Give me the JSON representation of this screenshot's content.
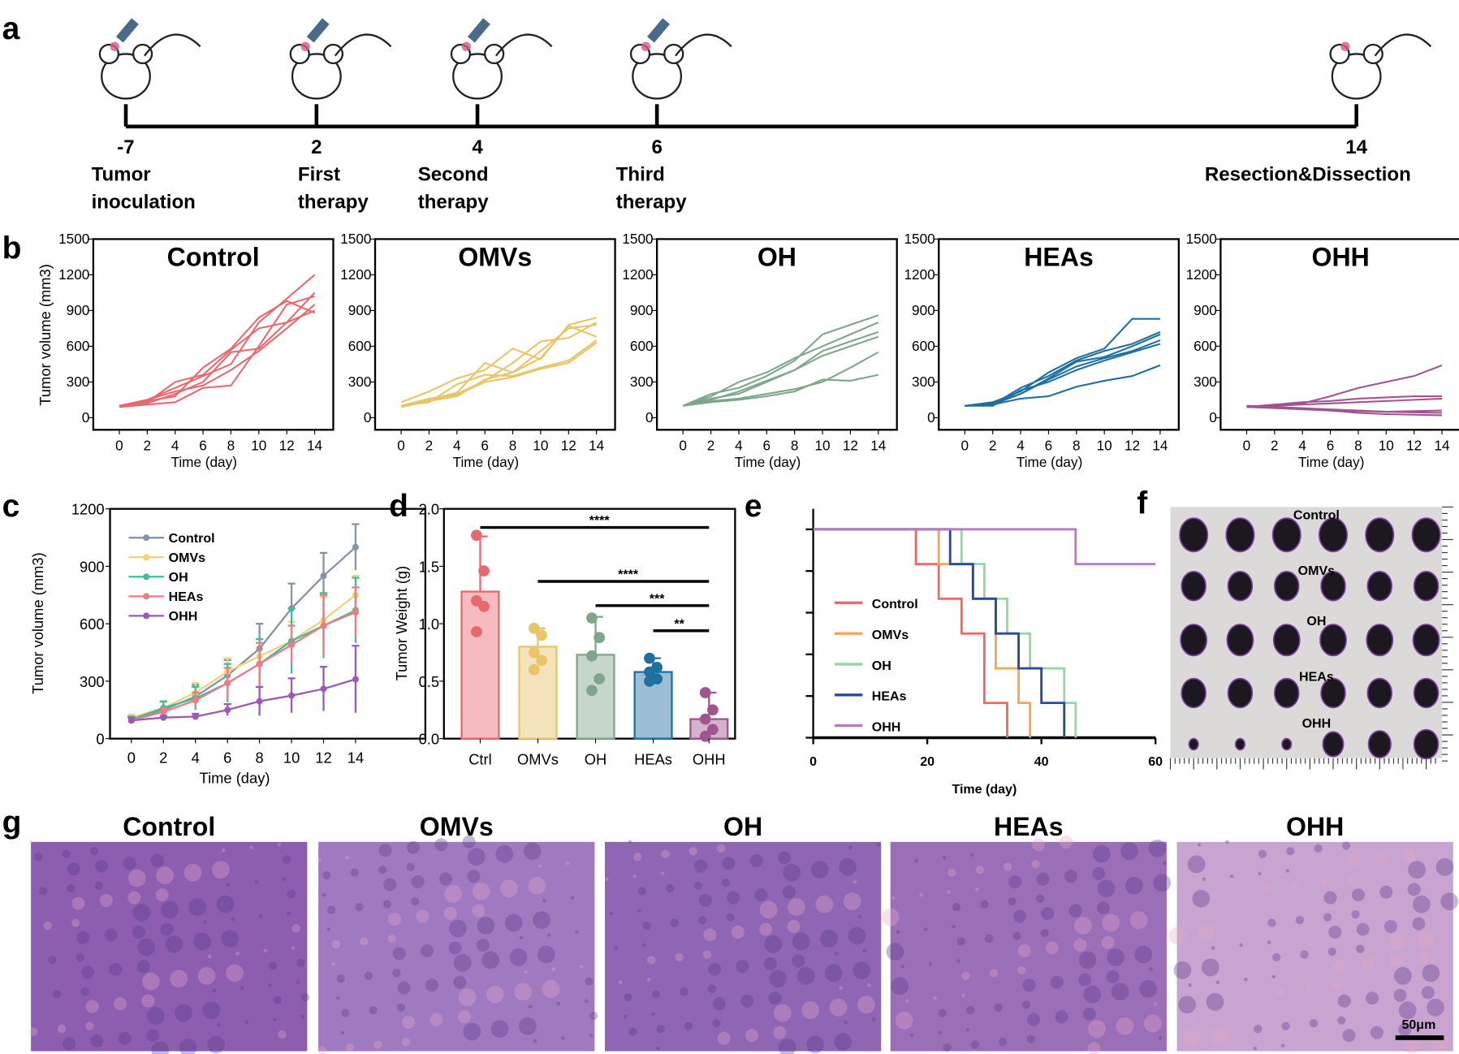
{
  "panels": {
    "a": "a",
    "b": "b",
    "c": "c",
    "d": "d",
    "e": "e",
    "f": "f",
    "g": "g"
  },
  "timeline": [
    {
      "day": "-7",
      "label1": "Tumor",
      "label2": "inoculation"
    },
    {
      "day": "2",
      "label1": "First",
      "label2": "therapy"
    },
    {
      "day": "4",
      "label1": "Second",
      "label2": "therapy"
    },
    {
      "day": "6",
      "label1": "Third",
      "label2": "therapy"
    },
    {
      "day": "14",
      "label1": "Resection&Dissection",
      "label2": ""
    }
  ],
  "colors": {
    "Control": "#e8686f",
    "OMVs": "#e9c468",
    "OH": "#7fa68a",
    "HEAs": "#1f6fa0",
    "OHH": "#a0558f",
    "c_Control": "#8294a6",
    "c_OMVs": "#eed37a",
    "c_OH": "#3bbf9c",
    "c_HEAs": "#ef7b85",
    "c_OHH": "#9a5ab8",
    "e_Control": "#ee6a6a",
    "e_OMVs": "#f2a65a",
    "e_OH": "#98d6a4",
    "e_HEAs": "#2c4a9a",
    "e_OHH": "#b47cc8"
  },
  "chart_data": [
    {
      "type": "line",
      "panel": "b",
      "ylabel": "Tumor volume (mm3)",
      "xlabel": "Time (day)",
      "x": [
        0,
        2,
        4,
        6,
        8,
        10,
        12,
        14
      ],
      "xticks": [
        "0",
        "2",
        "4",
        "6",
        "8",
        "10",
        "12",
        "14"
      ],
      "yticks": [
        "0",
        "300",
        "600",
        "900",
        "1200",
        "1500"
      ],
      "ylim": [
        0,
        1500
      ],
      "groups": [
        {
          "title": "Control",
          "lines": [
            [
              100,
              150,
              250,
              350,
              450,
              800,
              1000,
              1200
            ],
            [
              100,
              120,
              200,
              300,
              550,
              580,
              800,
              1050
            ],
            [
              90,
              110,
              130,
              250,
              270,
              600,
              950,
              1020
            ],
            [
              100,
              150,
              220,
              270,
              400,
              560,
              750,
              950
            ],
            [
              100,
              130,
              300,
              360,
              570,
              750,
              800,
              900
            ],
            [
              95,
              140,
              180,
              420,
              580,
              840,
              980,
              880
            ]
          ]
        },
        {
          "title": "OMVs",
          "lines": [
            [
              130,
              220,
              330,
              400,
              580,
              490,
              780,
              840
            ],
            [
              100,
              160,
              200,
              310,
              460,
              640,
              670,
              800
            ],
            [
              90,
              140,
              180,
              320,
              380,
              560,
              750,
              780
            ],
            [
              100,
              150,
              210,
              460,
              380,
              500,
              770,
              680
            ],
            [
              100,
              130,
              280,
              360,
              350,
              420,
              480,
              650
            ],
            [
              90,
              140,
              190,
              300,
              340,
              410,
              460,
              630
            ]
          ]
        },
        {
          "title": "OH",
          "lines": [
            [
              100,
              200,
              250,
              350,
              480,
              700,
              780,
              860
            ],
            [
              100,
              180,
              300,
              380,
              500,
              600,
              700,
              800
            ],
            [
              100,
              150,
              220,
              310,
              400,
              560,
              640,
              720
            ],
            [
              100,
              160,
              200,
              300,
              400,
              520,
              600,
              680
            ],
            [
              100,
              140,
              160,
              200,
              240,
              300,
              420,
              550
            ],
            [
              100,
              130,
              150,
              180,
              220,
              320,
              310,
              360
            ]
          ]
        },
        {
          "title": "HEAs",
          "lines": [
            [
              100,
              130,
              220,
              380,
              500,
              580,
              830,
              830
            ],
            [
              100,
              110,
              250,
              350,
              480,
              560,
              620,
              720
            ],
            [
              100,
              110,
              200,
              330,
              470,
              510,
              600,
              700
            ],
            [
              100,
              120,
              200,
              320,
              430,
              500,
              560,
              650
            ],
            [
              100,
              100,
              230,
              300,
              400,
              480,
              550,
              620
            ],
            [
              100,
              110,
              160,
              180,
              260,
              310,
              350,
              440
            ]
          ]
        },
        {
          "title": "OHH",
          "lines": [
            [
              90,
              110,
              120,
              180,
              250,
              300,
              350,
              440
            ],
            [
              90,
              110,
              130,
              140,
              160,
              170,
              180,
              180
            ],
            [
              90,
              100,
              110,
              120,
              130,
              140,
              150,
              160
            ],
            [
              100,
              90,
              80,
              70,
              60,
              50,
              55,
              60
            ],
            [
              90,
              80,
              70,
              60,
              55,
              50,
              45,
              40
            ],
            [
              100,
              90,
              80,
              60,
              40,
              30,
              25,
              20
            ]
          ]
        }
      ]
    },
    {
      "type": "line",
      "panel": "c",
      "ylabel": "Tumor volume (mm3)",
      "xlabel": "Time (day)",
      "x": [
        0,
        2,
        4,
        6,
        8,
        10,
        12,
        14
      ],
      "xticks": [
        "0",
        "2",
        "4",
        "6",
        "8",
        "10",
        "12",
        "14"
      ],
      "yticks": [
        "0",
        "300",
        "600",
        "900",
        "1200"
      ],
      "ylim": [
        0,
        1200
      ],
      "legend": "top-left",
      "series": [
        {
          "name": "Control",
          "values": [
            100,
            150,
            220,
            330,
            470,
            680,
            850,
            1000
          ],
          "err": [
            15,
            40,
            60,
            80,
            130,
            130,
            120,
            120
          ]
        },
        {
          "name": "OMVs",
          "values": [
            110,
            160,
            240,
            350,
            430,
            510,
            620,
            750
          ],
          "err": [
            15,
            30,
            50,
            70,
            90,
            100,
            120,
            100
          ]
        },
        {
          "name": "OH",
          "values": [
            100,
            160,
            210,
            290,
            390,
            510,
            590,
            670
          ],
          "err": [
            15,
            35,
            60,
            100,
            130,
            170,
            170,
            170
          ]
        },
        {
          "name": "HEAs",
          "values": [
            95,
            140,
            200,
            290,
            390,
            490,
            590,
            660
          ],
          "err": [
            15,
            20,
            40,
            80,
            110,
            100,
            160,
            130
          ]
        },
        {
          "name": "OHH",
          "values": [
            95,
            110,
            115,
            150,
            195,
            225,
            260,
            310
          ],
          "err": [
            15,
            10,
            15,
            30,
            75,
            90,
            115,
            175
          ]
        }
      ]
    },
    {
      "type": "bar",
      "panel": "d",
      "ylabel": "Tumor Weight (g)",
      "categories": [
        "Ctrl",
        "OMVs",
        "OH",
        "HEAs",
        "OHH"
      ],
      "values": [
        1.28,
        0.8,
        0.73,
        0.58,
        0.17
      ],
      "err": [
        0.48,
        0.16,
        0.33,
        0.12,
        0.23
      ],
      "yticks": [
        "0.0",
        "0.5",
        "1.0",
        "1.5",
        "2.0"
      ],
      "ylim": [
        0,
        2
      ],
      "points": [
        [
          1.77,
          1.46,
          1.2,
          1.15,
          0.93
        ],
        [
          0.96,
          0.9,
          0.75,
          0.68,
          0.6
        ],
        [
          1.05,
          0.88,
          0.72,
          0.52,
          0.42
        ],
        [
          0.7,
          0.62,
          0.58,
          0.52,
          0.5
        ],
        [
          0.4,
          0.25,
          0.17,
          0.08,
          0.02
        ]
      ],
      "significance": [
        {
          "from": "Ctrl",
          "to": "OHH",
          "label": "****"
        },
        {
          "from": "OMVs",
          "to": "OHH",
          "label": "****"
        },
        {
          "from": "OH",
          "to": "OHH",
          "label": "***"
        },
        {
          "from": "HEAs",
          "to": "OHH",
          "label": "**"
        }
      ]
    },
    {
      "type": "line",
      "panel": "e",
      "xlabel": "Time (day)",
      "xticks": [
        "0",
        "20",
        "40",
        "60"
      ],
      "xlim": [
        0,
        60
      ],
      "ylim": [
        0,
        100
      ],
      "legend": "left",
      "series": [
        {
          "name": "Control",
          "steps": [
            [
              0,
              100
            ],
            [
              18,
              83.3
            ],
            [
              22,
              66.7
            ],
            [
              26,
              50
            ],
            [
              30,
              16.7
            ],
            [
              34,
              0
            ]
          ]
        },
        {
          "name": "OMVs",
          "steps": [
            [
              0,
              100
            ],
            [
              22,
              83.3
            ],
            [
              28,
              66.7
            ],
            [
              32,
              33.3
            ],
            [
              36,
              16.7
            ],
            [
              38,
              0
            ]
          ]
        },
        {
          "name": "OH",
          "steps": [
            [
              0,
              100
            ],
            [
              26,
              83.3
            ],
            [
              30,
              66.7
            ],
            [
              34,
              50
            ],
            [
              38,
              33.3
            ],
            [
              44,
              16.7
            ],
            [
              46,
              0
            ]
          ]
        },
        {
          "name": "HEAs",
          "steps": [
            [
              0,
              100
            ],
            [
              24,
              83.3
            ],
            [
              28,
              66.7
            ],
            [
              32,
              50
            ],
            [
              36,
              33.3
            ],
            [
              40,
              16.7
            ],
            [
              44,
              0
            ]
          ]
        },
        {
          "name": "OHH",
          "steps": [
            [
              0,
              100
            ],
            [
              46,
              83.3
            ],
            [
              60,
              83.3
            ]
          ]
        }
      ]
    }
  ],
  "photo_f": {
    "labels": [
      "Control",
      "OMVs",
      "OH",
      "HEAs",
      "OHH"
    ]
  },
  "histology_g": {
    "labels": [
      "Control",
      "OMVs",
      "OH",
      "HEAs",
      "OHH"
    ],
    "scale_bar": "50μm"
  }
}
